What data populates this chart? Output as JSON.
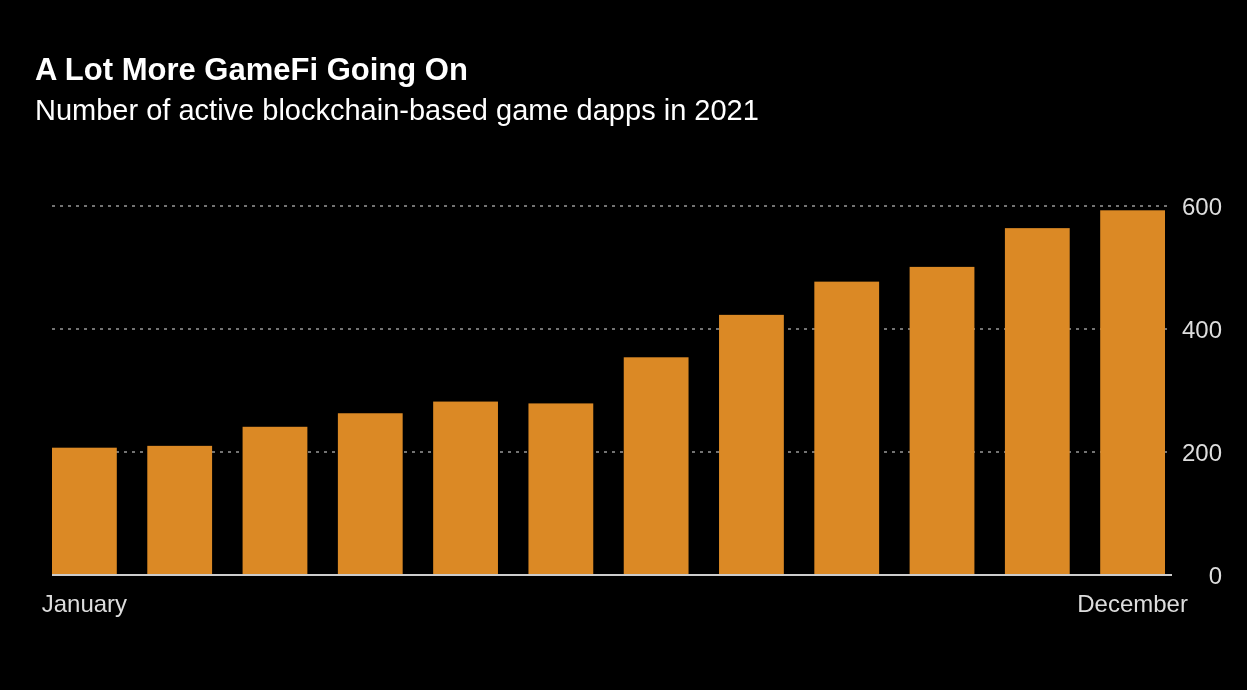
{
  "chart_data": {
    "type": "bar",
    "title": "A Lot More GameFi Going On",
    "subtitle": "Number of active blockchain-based game dapps in 2021",
    "categories": [
      "January",
      null,
      null,
      null,
      null,
      null,
      null,
      null,
      null,
      null,
      null,
      "December"
    ],
    "values": [
      207,
      210,
      241,
      263,
      282,
      279,
      354,
      423,
      477,
      501,
      564,
      593
    ],
    "color": "#db8925",
    "ylim": [
      0,
      600
    ],
    "yticks": [
      0,
      200,
      400,
      600
    ],
    "grid": "y"
  }
}
